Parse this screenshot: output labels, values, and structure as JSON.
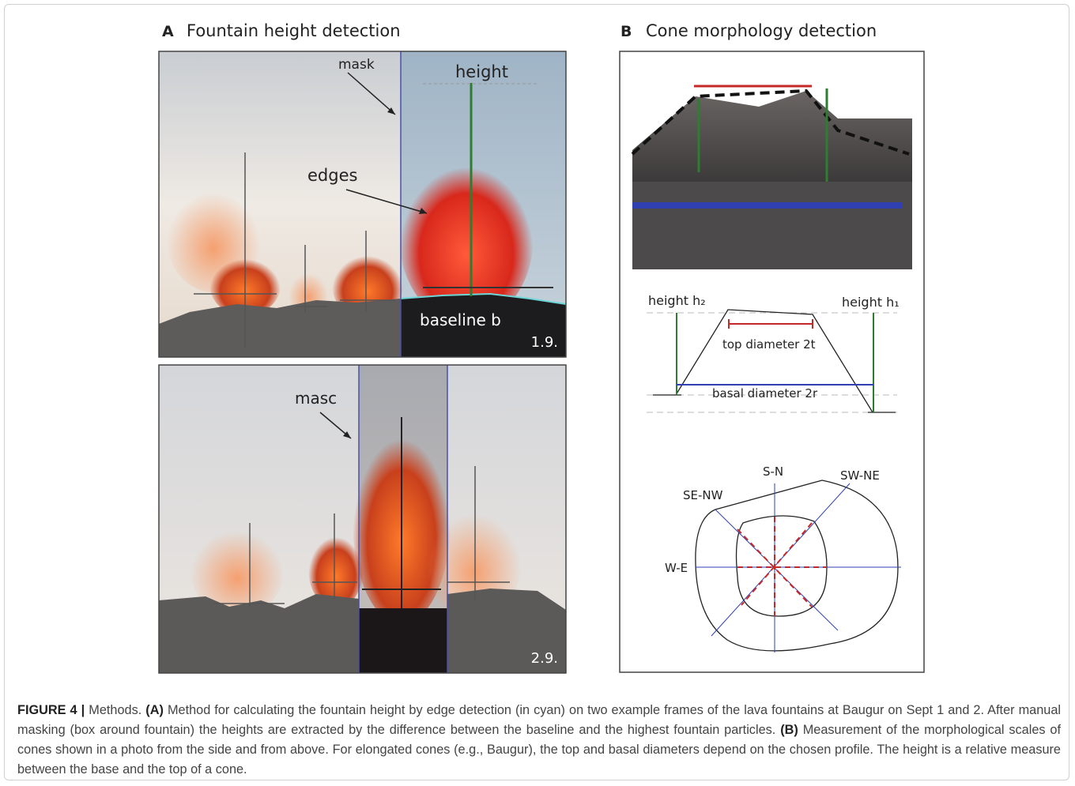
{
  "panel_a": {
    "letter": "A",
    "title": "Fountain height detection",
    "frame_1": {
      "mask": "mask",
      "height": "height",
      "edges": "edges",
      "baseline": "baseline b",
      "date": "1.9."
    },
    "frame_2": {
      "mask": "masc",
      "date": "2.9."
    }
  },
  "panel_b": {
    "letter": "B",
    "title": "Cone morphology detection",
    "profile": {
      "height_left": "height h₂",
      "height_right": "height h₁",
      "top_diameter": "top diameter  2t",
      "basal_diameter": "basal diameter 2r"
    },
    "plan": {
      "s_n": "S-N",
      "sw_ne": "SW-NE",
      "se_nw": "SE-NW",
      "w_e": "W-E"
    }
  },
  "caption": {
    "label": "FIGURE 4 |",
    "intro": "Methods.",
    "ref_a": "(A)",
    "text_a": "Method for calculating the fountain height by edge detection (in cyan) on two example frames of the lava fountains at Baugur on Sept 1 and 2. After manual masking (box around fountain) the heights are extracted by the difference between the baseline and the highest fountain particles.",
    "ref_b": "(B)",
    "text_b": "Measurement of the morphological scales of cones shown in a photo from the side and from above. For elongated cones (e.g., Baugur), the top and basal diameters depend on the chosen profile. The height is a relative measure between the base and the top of a cone."
  }
}
